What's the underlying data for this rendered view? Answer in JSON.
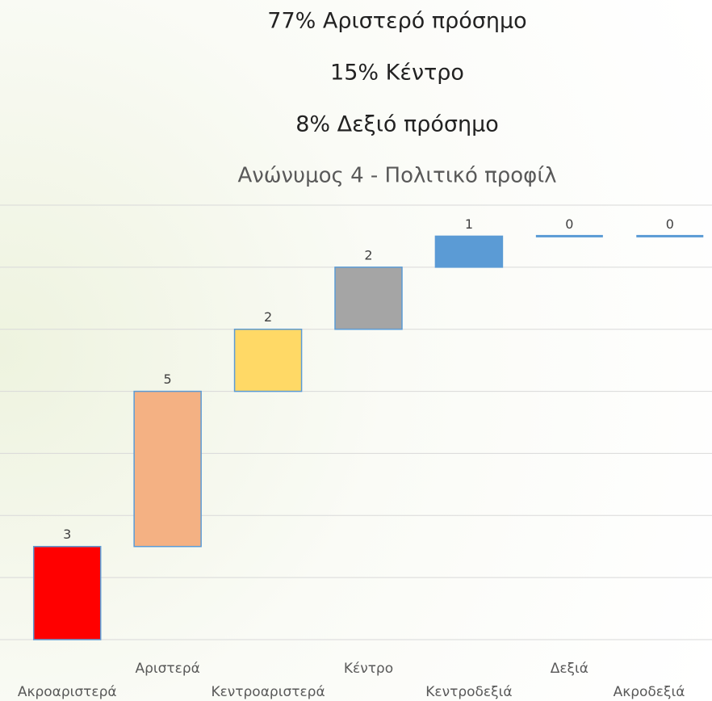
{
  "chart_data": {
    "type": "waterfall",
    "annotations": [
      "77% Αριστερό πρόσημο",
      "15% Κέντρο",
      "8% Δεξιό πρόσημο"
    ],
    "title": "Ανώνυμος 4 - Πολιτικό προφίλ",
    "categories": [
      "Ακροαριστερά",
      "Αριστερά",
      "Κεντροαριστερά",
      "Κέντρο",
      "Κεντροδεξιά",
      "Δεξιά",
      "Ακροδεξιά"
    ],
    "values": [
      3,
      5,
      2,
      2,
      1,
      0,
      0
    ],
    "colors": [
      "#ff0000",
      "#f4b183",
      "#ffd966",
      "#a5a5a5",
      "#5b9bd5",
      "#5b9bd5",
      "#5b9bd5"
    ],
    "ylim": [
      0,
      14
    ],
    "yticks": [
      0,
      2,
      4,
      6,
      8,
      10,
      12,
      14
    ],
    "grid": true,
    "ytick_labels": false
  }
}
